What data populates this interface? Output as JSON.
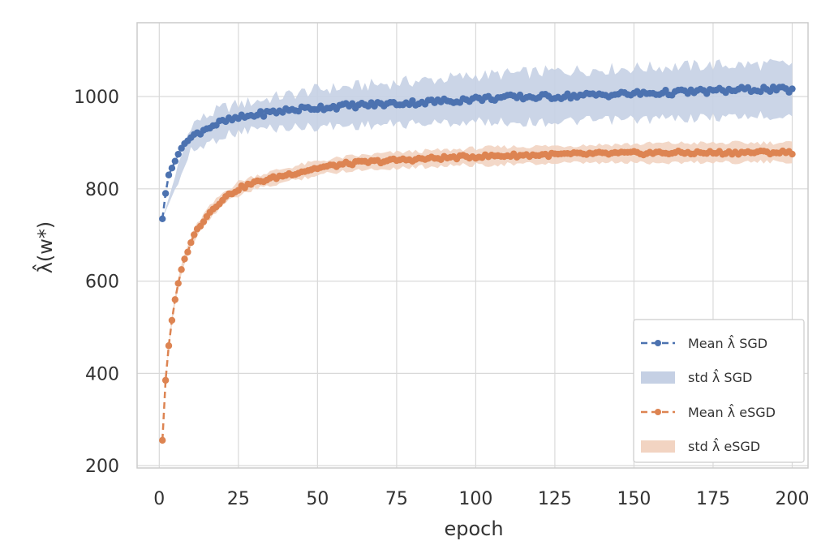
{
  "chart_data": {
    "type": "line",
    "title": "",
    "xlabel": "epoch",
    "ylabel": "λ̂(w*)",
    "xlim": [
      -7,
      205
    ],
    "ylim": [
      195,
      1160
    ],
    "xticks": [
      0,
      25,
      50,
      75,
      100,
      125,
      150,
      175,
      200
    ],
    "yticks": [
      200,
      400,
      600,
      800,
      1000
    ],
    "xtick_labels": [
      "0",
      "25",
      "50",
      "75",
      "100",
      "125",
      "150",
      "175",
      "200"
    ],
    "ytick_labels": [
      "200",
      "400",
      "600",
      "800",
      "1000"
    ],
    "grid": true,
    "legend_position": "lower-right",
    "legend": [
      "Mean λ̂ SGD",
      "std λ̂ SGD",
      "Mean λ̂ eSGD",
      "std λ̂ eSGD"
    ],
    "colors": {
      "sgd": "#4c72b0",
      "sgd_band": "#c5d0e4",
      "esgd": "#dd8452",
      "esgd_band": "#f2d4c2",
      "grid": "#d9d9d9",
      "frame": "#cccccc"
    },
    "series": [
      {
        "name": "Mean λ̂ SGD",
        "style": "dashed-dot-marker",
        "x": [
          1,
          2,
          3,
          4,
          5,
          6,
          7,
          8,
          10,
          12,
          15,
          20,
          25,
          30,
          40,
          50,
          60,
          75,
          90,
          100,
          110,
          125,
          140,
          150,
          160,
          175,
          190,
          200
        ],
        "values": [
          735,
          790,
          830,
          845,
          860,
          875,
          888,
          898,
          910,
          920,
          932,
          945,
          953,
          960,
          970,
          976,
          980,
          985,
          990,
          995,
          998,
          1000,
          1004,
          1006,
          1008,
          1012,
          1016,
          1014
        ]
      },
      {
        "name": "std λ̂ SGD",
        "style": "band",
        "x": [
          1,
          10,
          20,
          30,
          50,
          75,
          100,
          125,
          150,
          175,
          200
        ],
        "values": [
          735,
          910,
          945,
          960,
          976,
          985,
          995,
          1000,
          1006,
          1012,
          1014
        ],
        "lower": [
          735,
          880,
          915,
          930,
          935,
          940,
          945,
          945,
          950,
          955,
          960
        ],
        "upper": [
          735,
          940,
          975,
          990,
          1015,
          1030,
          1045,
          1055,
          1062,
          1068,
          1070
        ]
      },
      {
        "name": "Mean λ̂ eSGD",
        "style": "dashed-dot-marker",
        "x": [
          1,
          2,
          3,
          4,
          5,
          6,
          7,
          8,
          10,
          12,
          15,
          20,
          25,
          30,
          40,
          50,
          60,
          75,
          90,
          100,
          110,
          125,
          140,
          150,
          160,
          175,
          190,
          200
        ],
        "values": [
          255,
          385,
          460,
          515,
          560,
          595,
          625,
          648,
          685,
          712,
          742,
          778,
          800,
          813,
          830,
          845,
          855,
          862,
          867,
          870,
          872,
          874,
          876,
          877,
          878,
          878,
          879,
          879
        ],
        "lower": [
          255,
          385,
          455,
          505,
          550,
          585,
          615,
          638,
          675,
          700,
          730,
          765,
          785,
          798,
          815,
          830,
          840,
          845,
          850,
          852,
          853,
          855,
          856,
          857,
          857,
          858,
          858,
          858
        ],
        "upper": [
          255,
          385,
          465,
          525,
          570,
          605,
          635,
          658,
          695,
          724,
          754,
          791,
          815,
          828,
          845,
          860,
          870,
          879,
          884,
          888,
          891,
          893,
          896,
          897,
          899,
          899,
          900,
          900
        ]
      }
    ]
  }
}
